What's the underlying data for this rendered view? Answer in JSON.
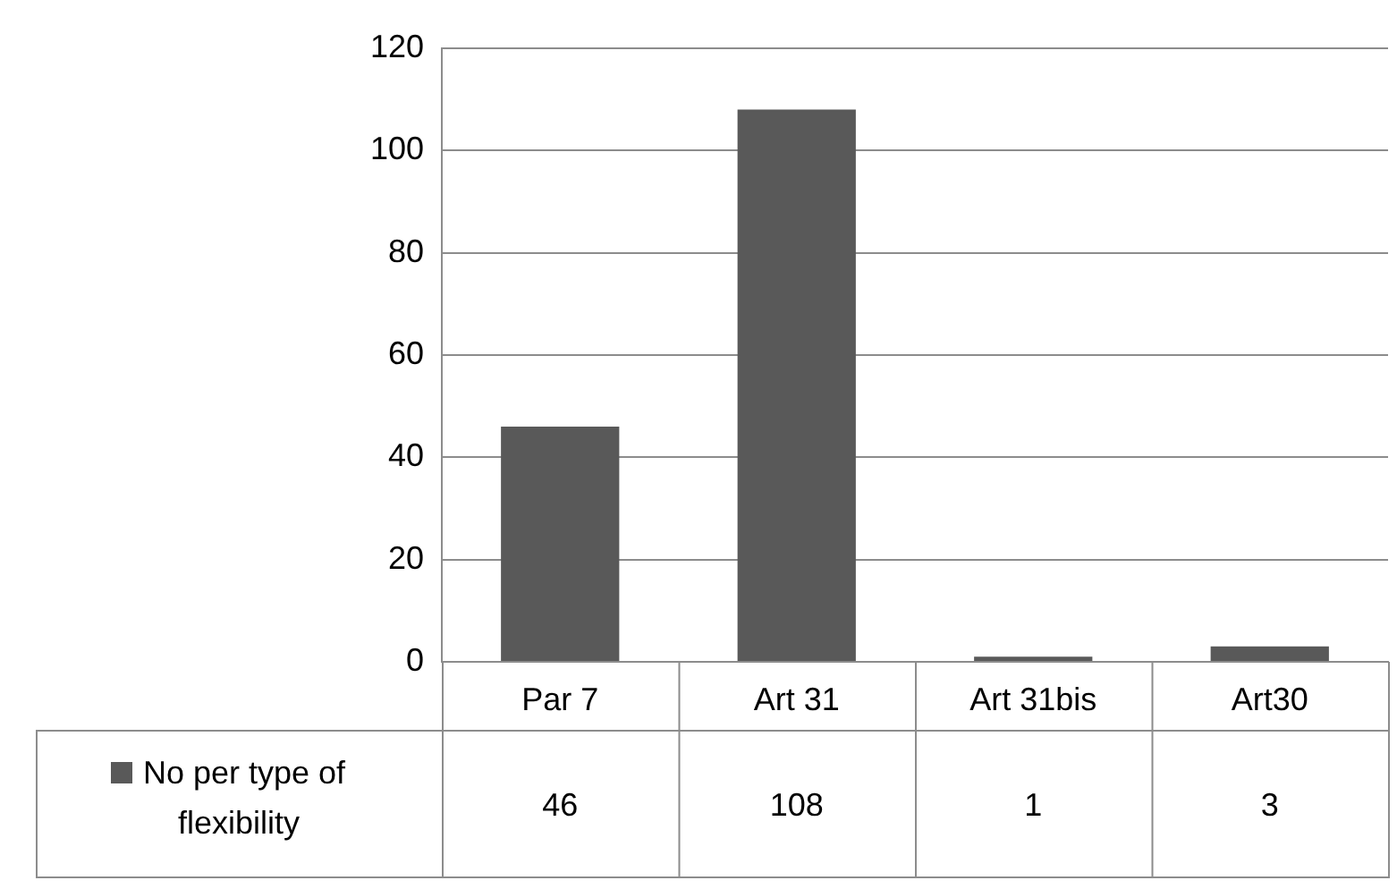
{
  "chart_data": {
    "type": "bar",
    "categories": [
      "Par 7",
      "Art 31",
      "Art 31bis",
      "Art30"
    ],
    "series": [
      {
        "name": "No per type of flexibility",
        "color": "#595959",
        "values": [
          46,
          108,
          1,
          3
        ]
      }
    ],
    "ylim": [
      0,
      120
    ],
    "yticks": [
      0,
      20,
      40,
      60,
      80,
      100,
      120
    ],
    "grid": "y",
    "legend": "bottom left",
    "data_labels": true
  }
}
